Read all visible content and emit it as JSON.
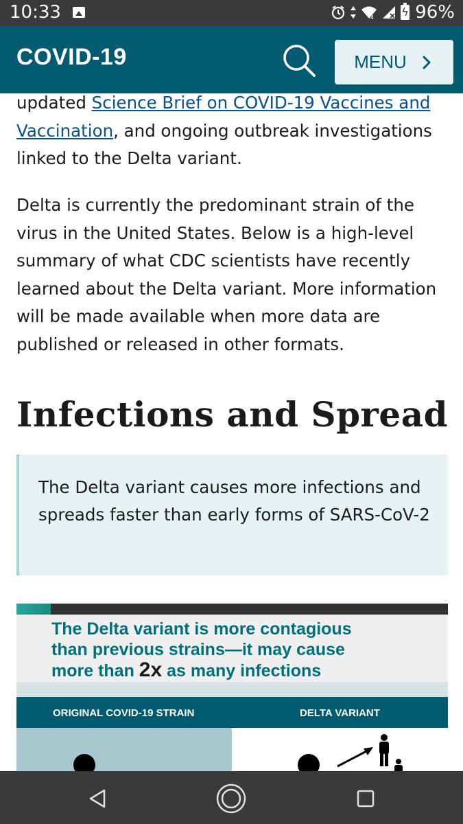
{
  "status_bar": {
    "time": "10:33",
    "battery_percent": "96%",
    "icons": [
      "image-icon",
      "alarm-icon",
      "data-arrows-icon",
      "wifi-icon",
      "signal-icon",
      "battery-charging-icon"
    ]
  },
  "header": {
    "title": "COVID-19",
    "menu_label": "MENU",
    "bg_color": "#005a70"
  },
  "content": {
    "para1_pre": "updated ",
    "para1_link": "Science Brief on COVID-19 Vaccines and Vaccination",
    "para1_post": ", and ongoing outbreak investigations linked to the Delta variant.",
    "para2": "Delta is currently the predominant strain of the virus in the United States. Below is a high-level summary of what CDC scientists have recently learned about the Delta variant. More information will be made available when more data are published or released in other formats.",
    "heading": "Infections and Spread",
    "callout": "The Delta variant causes more infections and spreads faster than early forms of SARS-CoV-2"
  },
  "infographic": {
    "headline_line1": "The Delta variant is more contagious",
    "headline_line2": "than previous strains—it may cause",
    "headline_line3_pre": "more than ",
    "headline_big": "2x",
    "headline_line3_post": " as many infections",
    "left_label": "ORIGINAL COVID-19 STRAIN",
    "right_label": "DELTA VARIANT"
  },
  "nav": {
    "icons": [
      "back-icon",
      "home-icon",
      "recents-icon"
    ]
  }
}
